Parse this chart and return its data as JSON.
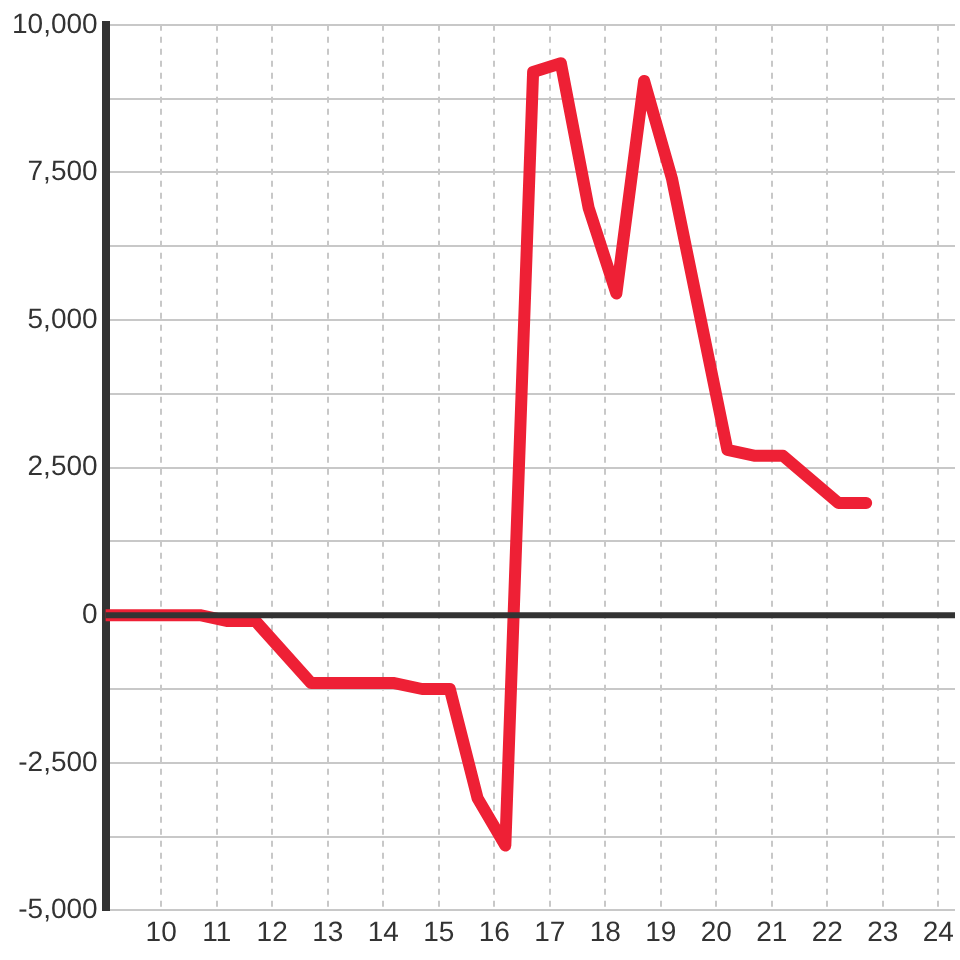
{
  "chart_data": {
    "type": "line",
    "x": [
      9,
      10.7,
      11.2,
      11.7,
      12.7,
      14.2,
      14.7,
      15.2,
      15.7,
      16.2,
      16.7,
      17.2,
      17.7,
      18.2,
      18.7,
      19.2,
      20.2,
      20.7,
      21.2,
      22.2,
      22.7
    ],
    "values": [
      0,
      0,
      -100,
      -100,
      -1150,
      -1150,
      -1250,
      -1250,
      -3100,
      -3900,
      9200,
      9350,
      6900,
      5450,
      9050,
      7400,
      2800,
      2700,
      2700,
      1900,
      1900
    ],
    "color": "#ee2035",
    "xlim": [
      9,
      24.3
    ],
    "xticks": [
      10,
      11,
      12,
      13,
      14,
      15,
      16,
      17,
      18,
      19,
      20,
      21,
      22,
      23,
      24
    ],
    "ylim": [
      -5000,
      10000
    ],
    "yticks": [
      {
        "value": -5000,
        "label": "-5,000"
      },
      {
        "value": -3750,
        "label": null
      },
      {
        "value": -2500,
        "label": "-2,500"
      },
      {
        "value": -1250,
        "label": null
      },
      0,
      {
        "value": 1250,
        "label": null
      },
      {
        "value": 2500,
        "label": "2,500"
      },
      {
        "value": 3750,
        "label": null
      },
      {
        "value": 5000,
        "label": "5,000"
      },
      {
        "value": 6250,
        "label": null
      },
      {
        "value": 7500,
        "label": "7,500"
      },
      {
        "value": 8750,
        "label": null
      },
      {
        "value": 10000,
        "label": "10,000"
      }
    ],
    "grid": true,
    "legend": false,
    "marker": "none",
    "line_style": "solid",
    "ref_lines": [
      {
        "axis": "y",
        "value": 0,
        "color": "#333333"
      }
    ]
  }
}
